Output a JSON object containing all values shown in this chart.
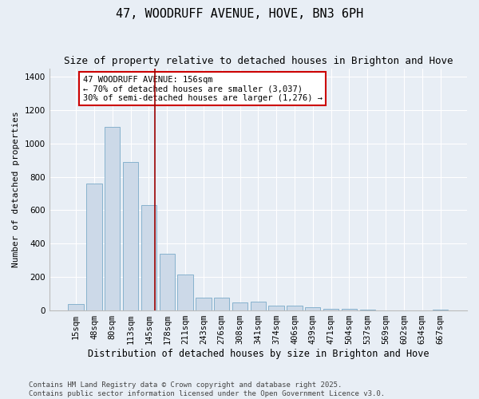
{
  "title": "47, WOODRUFF AVENUE, HOVE, BN3 6PH",
  "subtitle": "Size of property relative to detached houses in Brighton and Hove",
  "xlabel": "Distribution of detached houses by size in Brighton and Hove",
  "ylabel": "Number of detached properties",
  "categories": [
    "15sqm",
    "48sqm",
    "80sqm",
    "113sqm",
    "145sqm",
    "178sqm",
    "211sqm",
    "243sqm",
    "276sqm",
    "308sqm",
    "341sqm",
    "374sqm",
    "406sqm",
    "439sqm",
    "471sqm",
    "504sqm",
    "537sqm",
    "569sqm",
    "602sqm",
    "634sqm",
    "667sqm"
  ],
  "values": [
    40,
    760,
    1100,
    890,
    630,
    340,
    215,
    75,
    75,
    50,
    55,
    30,
    30,
    20,
    10,
    8,
    3,
    0,
    2,
    0,
    3
  ],
  "bar_color": "#ccd9e8",
  "bar_edge_color": "#7aaac8",
  "vline_x_index": 4.33,
  "vline_color": "#990000",
  "annotation_text": "47 WOODRUFF AVENUE: 156sqm\n← 70% of detached houses are smaller (3,037)\n30% of semi-detached houses are larger (1,276) →",
  "annotation_box_color": "#cc0000",
  "ylim": [
    0,
    1450
  ],
  "yticks": [
    0,
    200,
    400,
    600,
    800,
    1000,
    1200,
    1400
  ],
  "bg_color": "#e8eef5",
  "plot_bg_color": "#e8eef5",
  "footer": "Contains HM Land Registry data © Crown copyright and database right 2025.\nContains public sector information licensed under the Open Government Licence v3.0.",
  "title_fontsize": 11,
  "subtitle_fontsize": 9,
  "xlabel_fontsize": 8.5,
  "ylabel_fontsize": 8,
  "tick_fontsize": 7.5,
  "footer_fontsize": 6.5,
  "annot_fontsize": 7.5
}
